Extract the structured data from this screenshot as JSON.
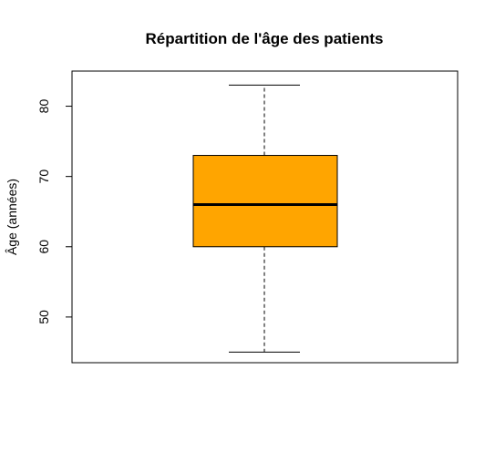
{
  "chart_data": {
    "type": "box",
    "title": "Répartition de l'âge des patients",
    "xlabel": "",
    "ylabel": "Âge (années)",
    "ylim": [
      43.5,
      85.0
    ],
    "yticks": [
      50,
      60,
      70,
      80
    ],
    "grid": false,
    "colors": {
      "box_fill": "#FFA500",
      "stroke": "#000000"
    },
    "box": {
      "min": 45,
      "q1": 60,
      "median": 66,
      "q3": 73,
      "max": 83
    }
  }
}
